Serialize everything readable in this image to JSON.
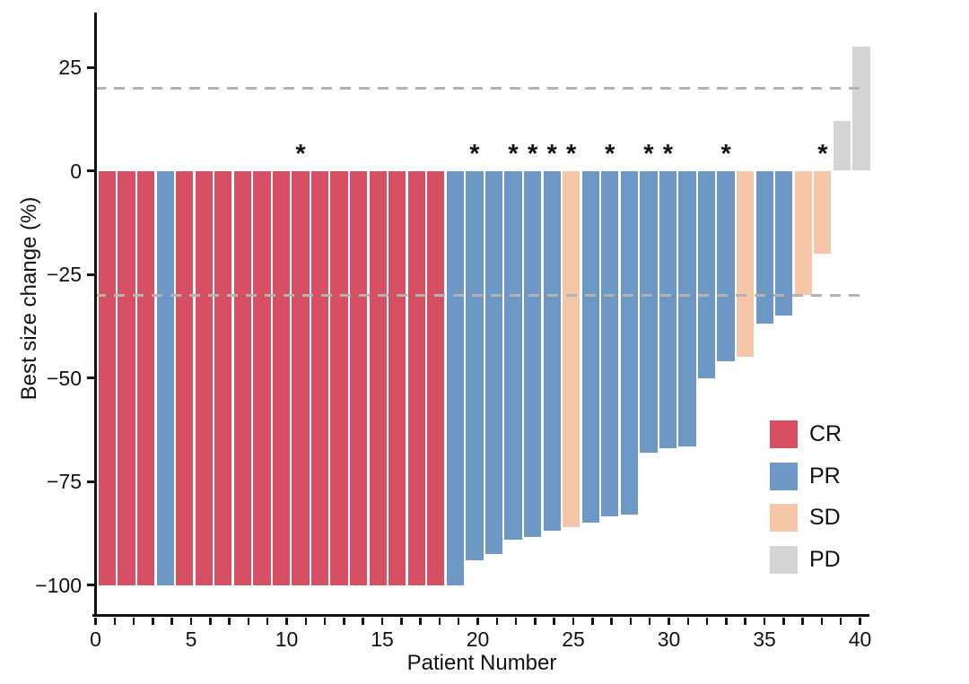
{
  "chart_data": {
    "type": "bar",
    "subtype": "waterfall",
    "title": "",
    "xlabel": "Patient Number",
    "ylabel": "Best size change (%)",
    "xlim": [
      0,
      40.6
    ],
    "ylim": [
      -107,
      38
    ],
    "x_major_ticks": [
      0,
      5,
      10,
      15,
      20,
      25,
      30,
      35,
      40
    ],
    "x_minor_tick_every": 1,
    "y_ticks": [
      25,
      0,
      -25,
      -50,
      -75,
      -100
    ],
    "grid": "off",
    "reference_lines": [
      {
        "y": 20,
        "style": "dashed",
        "color": "#b3b3b3"
      },
      {
        "y": -30,
        "style": "dashed",
        "color": "#b3b3b3"
      }
    ],
    "annotation_symbol": "*",
    "legend": {
      "position": "lower-right",
      "entries": [
        {
          "label": "CR",
          "color": "#d64f63"
        },
        {
          "label": "PR",
          "color": "#6d98c6"
        },
        {
          "label": "SD",
          "color": "#f6c6a8"
        },
        {
          "label": "PD",
          "color": "#d4d4d4"
        }
      ]
    },
    "series": [
      {
        "patient": 1,
        "value": -100,
        "response": "CR",
        "star": false
      },
      {
        "patient": 2,
        "value": -100,
        "response": "CR",
        "star": false
      },
      {
        "patient": 3,
        "value": -100,
        "response": "CR",
        "star": false
      },
      {
        "patient": 4,
        "value": -100,
        "response": "PR",
        "star": false
      },
      {
        "patient": 5,
        "value": -100,
        "response": "CR",
        "star": false
      },
      {
        "patient": 6,
        "value": -100,
        "response": "CR",
        "star": false
      },
      {
        "patient": 7,
        "value": -100,
        "response": "CR",
        "star": false
      },
      {
        "patient": 8,
        "value": -100,
        "response": "CR",
        "star": false
      },
      {
        "patient": 9,
        "value": -100,
        "response": "CR",
        "star": false
      },
      {
        "patient": 10,
        "value": -100,
        "response": "CR",
        "star": false
      },
      {
        "patient": 11,
        "value": -100,
        "response": "CR",
        "star": true
      },
      {
        "patient": 12,
        "value": -100,
        "response": "CR",
        "star": false
      },
      {
        "patient": 13,
        "value": -100,
        "response": "CR",
        "star": false
      },
      {
        "patient": 14,
        "value": -100,
        "response": "CR",
        "star": false
      },
      {
        "patient": 15,
        "value": -100,
        "response": "CR",
        "star": false
      },
      {
        "patient": 16,
        "value": -100,
        "response": "CR",
        "star": false
      },
      {
        "patient": 17,
        "value": -100,
        "response": "CR",
        "star": false
      },
      {
        "patient": 18,
        "value": -100,
        "response": "CR",
        "star": false
      },
      {
        "patient": 19,
        "value": -100,
        "response": "PR",
        "star": false
      },
      {
        "patient": 20,
        "value": -94,
        "response": "PR",
        "star": true
      },
      {
        "patient": 21,
        "value": -92.5,
        "response": "PR",
        "star": false
      },
      {
        "patient": 22,
        "value": -89,
        "response": "PR",
        "star": true
      },
      {
        "patient": 23,
        "value": -88.5,
        "response": "PR",
        "star": true
      },
      {
        "patient": 24,
        "value": -87,
        "response": "PR",
        "star": true
      },
      {
        "patient": 25,
        "value": -86,
        "response": "SD",
        "star": true
      },
      {
        "patient": 26,
        "value": -85,
        "response": "PR",
        "star": false
      },
      {
        "patient": 27,
        "value": -83.5,
        "response": "PR",
        "star": true
      },
      {
        "patient": 28,
        "value": -83,
        "response": "PR",
        "star": false
      },
      {
        "patient": 29,
        "value": -68,
        "response": "PR",
        "star": true
      },
      {
        "patient": 30,
        "value": -67,
        "response": "PR",
        "star": true
      },
      {
        "patient": 31,
        "value": -66.5,
        "response": "PR",
        "star": false
      },
      {
        "patient": 32,
        "value": -50,
        "response": "PR",
        "star": false
      },
      {
        "patient": 33,
        "value": -46,
        "response": "PR",
        "star": true
      },
      {
        "patient": 34,
        "value": -45,
        "response": "SD",
        "star": false
      },
      {
        "patient": 35,
        "value": -37,
        "response": "PR",
        "star": false
      },
      {
        "patient": 36,
        "value": -35,
        "response": "PR",
        "star": false
      },
      {
        "patient": 37,
        "value": -30,
        "response": "SD",
        "star": false
      },
      {
        "patient": 38,
        "value": -20,
        "response": "SD",
        "star": true
      },
      {
        "patient": 39,
        "value": 12,
        "response": "PD",
        "star": false
      },
      {
        "patient": 40,
        "value": 30,
        "response": "PD",
        "star": false
      }
    ]
  }
}
